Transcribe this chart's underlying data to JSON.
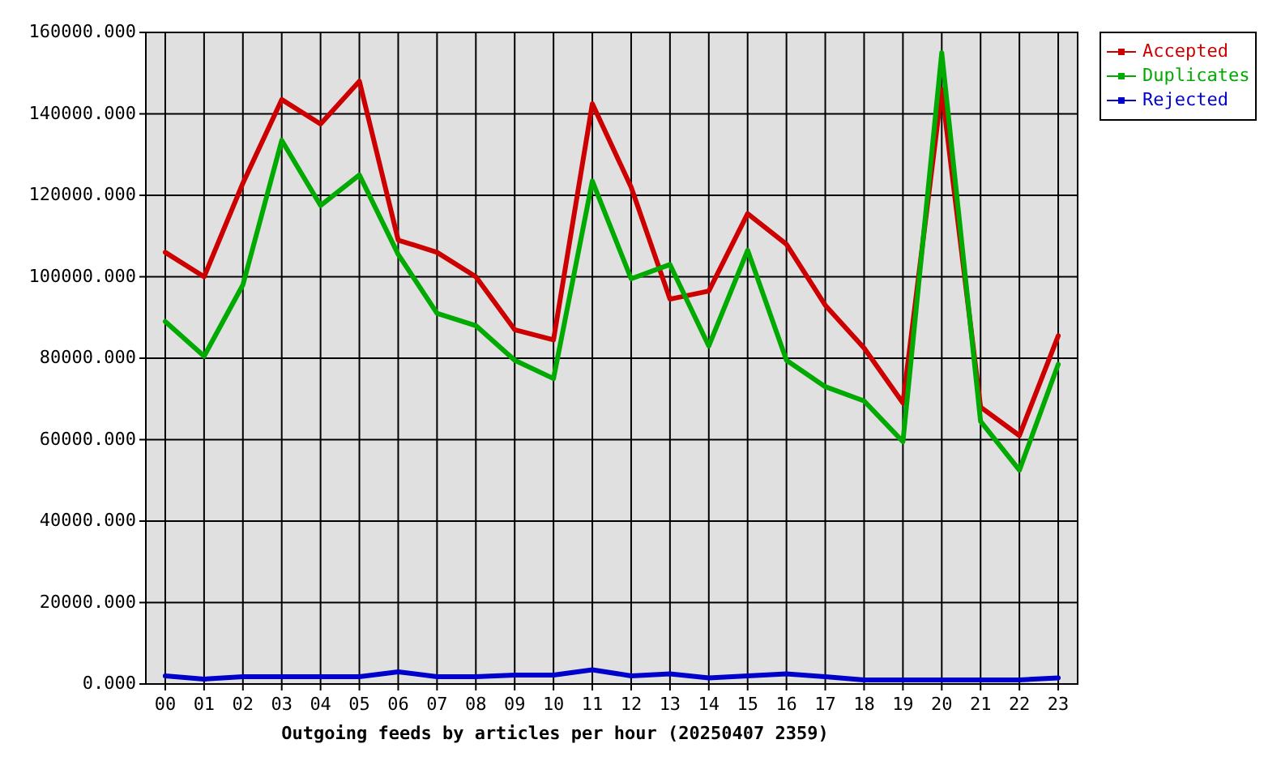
{
  "chart_data": {
    "type": "line",
    "xlabel": "Outgoing feeds by articles per hour (20250407 2359)",
    "categories": [
      "00",
      "01",
      "02",
      "03",
      "04",
      "05",
      "06",
      "07",
      "08",
      "09",
      "10",
      "11",
      "12",
      "13",
      "14",
      "15",
      "16",
      "17",
      "18",
      "19",
      "20",
      "21",
      "22",
      "23"
    ],
    "series": [
      {
        "name": "Accepted",
        "color": "#cc0000",
        "values": [
          106000,
          100000,
          123000,
          143500,
          137500,
          148000,
          109000,
          106000,
          100000,
          87000,
          84500,
          142500,
          122000,
          94500,
          96500,
          115500,
          108000,
          93000,
          82500,
          69000,
          146000,
          68000,
          61000,
          85500
        ]
      },
      {
        "name": "Duplicates",
        "color": "#00aa00",
        "values": [
          89000,
          80500,
          98000,
          133500,
          117500,
          125000,
          105500,
          91000,
          88000,
          79500,
          75000,
          123500,
          99500,
          103000,
          83000,
          106500,
          79500,
          73000,
          69500,
          59500,
          155000,
          64500,
          52500,
          78500
        ]
      },
      {
        "name": "Rejected",
        "color": "#0000cc",
        "values": [
          2000,
          1200,
          1800,
          1800,
          1800,
          1800,
          3000,
          1800,
          1800,
          2200,
          2200,
          3500,
          2000,
          2500,
          1500,
          2000,
          2500,
          1800,
          1000,
          1000,
          1000,
          1000,
          1000,
          1500
        ]
      }
    ],
    "ylim": [
      0,
      160000
    ],
    "yticks": [
      {
        "value": 0,
        "label": "0.000"
      },
      {
        "value": 20000,
        "label": "20000.000"
      },
      {
        "value": 40000,
        "label": "40000.000"
      },
      {
        "value": 60000,
        "label": "60000.000"
      },
      {
        "value": 80000,
        "label": "80000.000"
      },
      {
        "value": 100000,
        "label": "100000.000"
      },
      {
        "value": 120000,
        "label": "120000.000"
      },
      {
        "value": 140000,
        "label": "140000.000"
      },
      {
        "value": 160000,
        "label": "160000.000"
      }
    ],
    "grid": true,
    "legend": "top right"
  }
}
